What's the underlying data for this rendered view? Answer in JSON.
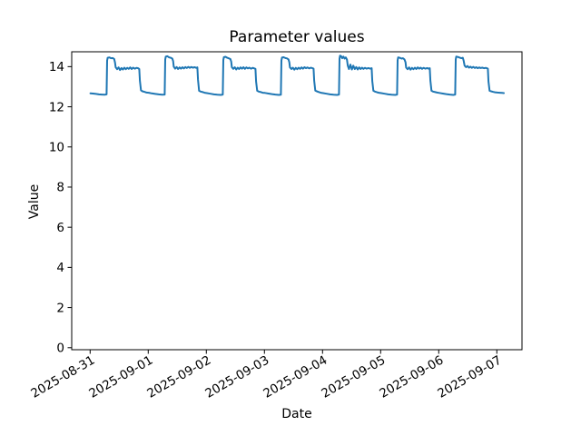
{
  "figure": {
    "background": "#ffffff",
    "text_color": "#000000"
  },
  "chart_data": {
    "type": "line",
    "title": "Parameter values",
    "xlabel": "Date",
    "ylabel": "Value",
    "line_color": "#1f77b4",
    "line_width": 2,
    "grid": false,
    "legend": null,
    "x_unit": "days since 2025-08-31 00:00",
    "x_tick_labels": [
      "2025-08-31",
      "2025-09-01",
      "2025-09-02",
      "2025-09-03",
      "2025-09-04",
      "2025-09-05",
      "2025-09-06",
      "2025-09-07"
    ],
    "x_tick_positions_days": [
      0,
      1,
      2,
      3,
      4,
      5,
      6,
      7
    ],
    "x_tick_rotation_deg": 30,
    "y_ticks": [
      0,
      2,
      4,
      6,
      8,
      10,
      12,
      14
    ],
    "xlim_days": [
      -0.317,
      7.433
    ],
    "ylim": [
      -0.1,
      14.74
    ],
    "series": [
      {
        "name": "Parameter",
        "points": [
          [
            0.005,
            12.67
          ],
          [
            0.05,
            12.66
          ],
          [
            0.1,
            12.64
          ],
          [
            0.15,
            12.62
          ],
          [
            0.2,
            12.61
          ],
          [
            0.25,
            12.6
          ],
          [
            0.283,
            12.62
          ],
          [
            0.292,
            14.3
          ],
          [
            0.302,
            14.44
          ],
          [
            0.33,
            14.46
          ],
          [
            0.36,
            14.42
          ],
          [
            0.39,
            14.43
          ],
          [
            0.415,
            14.38
          ],
          [
            0.428,
            14.2
          ],
          [
            0.44,
            13.97
          ],
          [
            0.465,
            13.87
          ],
          [
            0.49,
            13.96
          ],
          [
            0.515,
            13.83
          ],
          [
            0.54,
            13.93
          ],
          [
            0.565,
            13.86
          ],
          [
            0.59,
            13.95
          ],
          [
            0.615,
            13.87
          ],
          [
            0.64,
            13.94
          ],
          [
            0.665,
            13.89
          ],
          [
            0.69,
            13.96
          ],
          [
            0.715,
            13.88
          ],
          [
            0.74,
            13.95
          ],
          [
            0.77,
            13.9
          ],
          [
            0.8,
            13.94
          ],
          [
            0.825,
            13.92
          ],
          [
            0.845,
            13.88
          ],
          [
            0.856,
            13.3
          ],
          [
            0.875,
            12.82
          ],
          [
            0.9,
            12.77
          ],
          [
            0.94,
            12.74
          ],
          [
            0.97,
            12.71
          ],
          [
            1.01,
            12.7
          ],
          [
            1.06,
            12.67
          ],
          [
            1.12,
            12.64
          ],
          [
            1.18,
            12.62
          ],
          [
            1.24,
            12.6
          ],
          [
            1.283,
            12.61
          ],
          [
            1.292,
            14.35
          ],
          [
            1.302,
            14.5
          ],
          [
            1.33,
            14.52
          ],
          [
            1.36,
            14.46
          ],
          [
            1.39,
            14.44
          ],
          [
            1.415,
            14.4
          ],
          [
            1.428,
            14.28
          ],
          [
            1.44,
            14.0
          ],
          [
            1.465,
            13.9
          ],
          [
            1.49,
            13.98
          ],
          [
            1.515,
            13.88
          ],
          [
            1.54,
            13.96
          ],
          [
            1.565,
            13.9
          ],
          [
            1.59,
            13.97
          ],
          [
            1.615,
            13.91
          ],
          [
            1.64,
            13.98
          ],
          [
            1.665,
            13.93
          ],
          [
            1.69,
            13.99
          ],
          [
            1.715,
            13.94
          ],
          [
            1.74,
            13.98
          ],
          [
            1.77,
            13.95
          ],
          [
            1.8,
            13.97
          ],
          [
            1.825,
            13.94
          ],
          [
            1.845,
            13.96
          ],
          [
            1.856,
            13.35
          ],
          [
            1.875,
            12.8
          ],
          [
            1.9,
            12.76
          ],
          [
            1.94,
            12.73
          ],
          [
            1.97,
            12.7
          ],
          [
            2.01,
            12.68
          ],
          [
            2.07,
            12.65
          ],
          [
            2.13,
            12.62
          ],
          [
            2.19,
            12.6
          ],
          [
            2.25,
            12.59
          ],
          [
            2.283,
            12.61
          ],
          [
            2.292,
            14.33
          ],
          [
            2.302,
            14.47
          ],
          [
            2.33,
            14.49
          ],
          [
            2.36,
            14.44
          ],
          [
            2.39,
            14.41
          ],
          [
            2.415,
            14.38
          ],
          [
            2.428,
            14.25
          ],
          [
            2.44,
            13.97
          ],
          [
            2.465,
            13.89
          ],
          [
            2.49,
            13.97
          ],
          [
            2.515,
            13.86
          ],
          [
            2.54,
            13.95
          ],
          [
            2.565,
            13.88
          ],
          [
            2.59,
            13.96
          ],
          [
            2.615,
            13.9
          ],
          [
            2.64,
            13.97
          ],
          [
            2.665,
            13.89
          ],
          [
            2.69,
            13.96
          ],
          [
            2.715,
            13.91
          ],
          [
            2.74,
            13.95
          ],
          [
            2.77,
            13.9
          ],
          [
            2.8,
            13.94
          ],
          [
            2.825,
            13.91
          ],
          [
            2.845,
            13.89
          ],
          [
            2.856,
            13.25
          ],
          [
            2.875,
            12.8
          ],
          [
            2.9,
            12.76
          ],
          [
            2.94,
            12.73
          ],
          [
            2.97,
            12.7
          ],
          [
            3.01,
            12.69
          ],
          [
            3.07,
            12.66
          ],
          [
            3.13,
            12.63
          ],
          [
            3.19,
            12.61
          ],
          [
            3.25,
            12.59
          ],
          [
            3.283,
            12.6
          ],
          [
            3.292,
            14.3
          ],
          [
            3.302,
            14.45
          ],
          [
            3.33,
            14.47
          ],
          [
            3.36,
            14.43
          ],
          [
            3.39,
            14.41
          ],
          [
            3.415,
            14.36
          ],
          [
            3.428,
            14.22
          ],
          [
            3.44,
            13.96
          ],
          [
            3.465,
            13.88
          ],
          [
            3.49,
            13.95
          ],
          [
            3.515,
            13.85
          ],
          [
            3.54,
            13.94
          ],
          [
            3.565,
            13.87
          ],
          [
            3.59,
            13.95
          ],
          [
            3.615,
            13.89
          ],
          [
            3.64,
            13.96
          ],
          [
            3.665,
            13.9
          ],
          [
            3.69,
            13.97
          ],
          [
            3.715,
            13.92
          ],
          [
            3.74,
            13.96
          ],
          [
            3.77,
            13.91
          ],
          [
            3.8,
            13.95
          ],
          [
            3.825,
            13.92
          ],
          [
            3.845,
            13.9
          ],
          [
            3.856,
            13.3
          ],
          [
            3.875,
            12.81
          ],
          [
            3.9,
            12.77
          ],
          [
            3.94,
            12.73
          ],
          [
            3.97,
            12.7
          ],
          [
            4.01,
            12.68
          ],
          [
            4.07,
            12.65
          ],
          [
            4.13,
            12.62
          ],
          [
            4.19,
            12.6
          ],
          [
            4.25,
            12.59
          ],
          [
            4.283,
            12.61
          ],
          [
            4.292,
            14.4
          ],
          [
            4.302,
            14.55
          ],
          [
            4.32,
            14.52
          ],
          [
            4.34,
            14.42
          ],
          [
            4.36,
            14.5
          ],
          [
            4.38,
            14.4
          ],
          [
            4.4,
            14.46
          ],
          [
            4.42,
            14.35
          ],
          [
            4.435,
            14.05
          ],
          [
            4.455,
            13.88
          ],
          [
            4.48,
            14.1
          ],
          [
            4.505,
            13.86
          ],
          [
            4.53,
            14.05
          ],
          [
            4.555,
            13.88
          ],
          [
            4.58,
            13.98
          ],
          [
            4.605,
            13.86
          ],
          [
            4.63,
            13.96
          ],
          [
            4.655,
            13.88
          ],
          [
            4.68,
            13.95
          ],
          [
            4.705,
            13.89
          ],
          [
            4.73,
            13.94
          ],
          [
            4.76,
            13.9
          ],
          [
            4.79,
            13.93
          ],
          [
            4.82,
            13.9
          ],
          [
            4.845,
            13.92
          ],
          [
            4.856,
            13.28
          ],
          [
            4.875,
            12.8
          ],
          [
            4.9,
            12.76
          ],
          [
            4.94,
            12.72
          ],
          [
            4.97,
            12.7
          ],
          [
            5.01,
            12.68
          ],
          [
            5.07,
            12.65
          ],
          [
            5.13,
            12.62
          ],
          [
            5.19,
            12.6
          ],
          [
            5.25,
            12.59
          ],
          [
            5.283,
            12.61
          ],
          [
            5.292,
            14.32
          ],
          [
            5.302,
            14.46
          ],
          [
            5.33,
            14.44
          ],
          [
            5.36,
            14.4
          ],
          [
            5.385,
            14.42
          ],
          [
            5.41,
            14.36
          ],
          [
            5.428,
            14.22
          ],
          [
            5.44,
            13.95
          ],
          [
            5.465,
            13.87
          ],
          [
            5.49,
            13.96
          ],
          [
            5.515,
            13.85
          ],
          [
            5.54,
            13.94
          ],
          [
            5.565,
            13.87
          ],
          [
            5.59,
            13.95
          ],
          [
            5.615,
            13.88
          ],
          [
            5.64,
            13.96
          ],
          [
            5.665,
            13.9
          ],
          [
            5.69,
            13.95
          ],
          [
            5.715,
            13.89
          ],
          [
            5.74,
            13.94
          ],
          [
            5.77,
            13.9
          ],
          [
            5.8,
            13.93
          ],
          [
            5.825,
            13.9
          ],
          [
            5.845,
            13.92
          ],
          [
            5.856,
            13.3
          ],
          [
            5.875,
            12.8
          ],
          [
            5.9,
            12.76
          ],
          [
            5.94,
            12.73
          ],
          [
            5.97,
            12.71
          ],
          [
            6.01,
            12.69
          ],
          [
            6.07,
            12.66
          ],
          [
            6.13,
            12.63
          ],
          [
            6.19,
            12.61
          ],
          [
            6.25,
            12.59
          ],
          [
            6.283,
            12.61
          ],
          [
            6.292,
            14.35
          ],
          [
            6.302,
            14.5
          ],
          [
            6.33,
            14.48
          ],
          [
            6.36,
            14.45
          ],
          [
            6.39,
            14.42
          ],
          [
            6.415,
            14.44
          ],
          [
            6.428,
            14.3
          ],
          [
            6.445,
            14.05
          ],
          [
            6.47,
            13.97
          ],
          [
            6.495,
            14.03
          ],
          [
            6.52,
            13.95
          ],
          [
            6.545,
            14.0
          ],
          [
            6.57,
            13.94
          ],
          [
            6.595,
            13.99
          ],
          [
            6.62,
            13.93
          ],
          [
            6.645,
            13.97
          ],
          [
            6.67,
            13.92
          ],
          [
            6.695,
            13.96
          ],
          [
            6.72,
            13.93
          ],
          [
            6.75,
            13.95
          ],
          [
            6.78,
            13.92
          ],
          [
            6.81,
            13.94
          ],
          [
            6.845,
            13.9
          ],
          [
            6.856,
            13.25
          ],
          [
            6.875,
            12.8
          ],
          [
            6.9,
            12.77
          ],
          [
            6.94,
            12.74
          ],
          [
            6.97,
            12.72
          ],
          [
            7.01,
            12.71
          ],
          [
            7.05,
            12.7
          ],
          [
            7.09,
            12.69
          ],
          [
            7.12,
            12.68
          ]
        ]
      }
    ]
  }
}
